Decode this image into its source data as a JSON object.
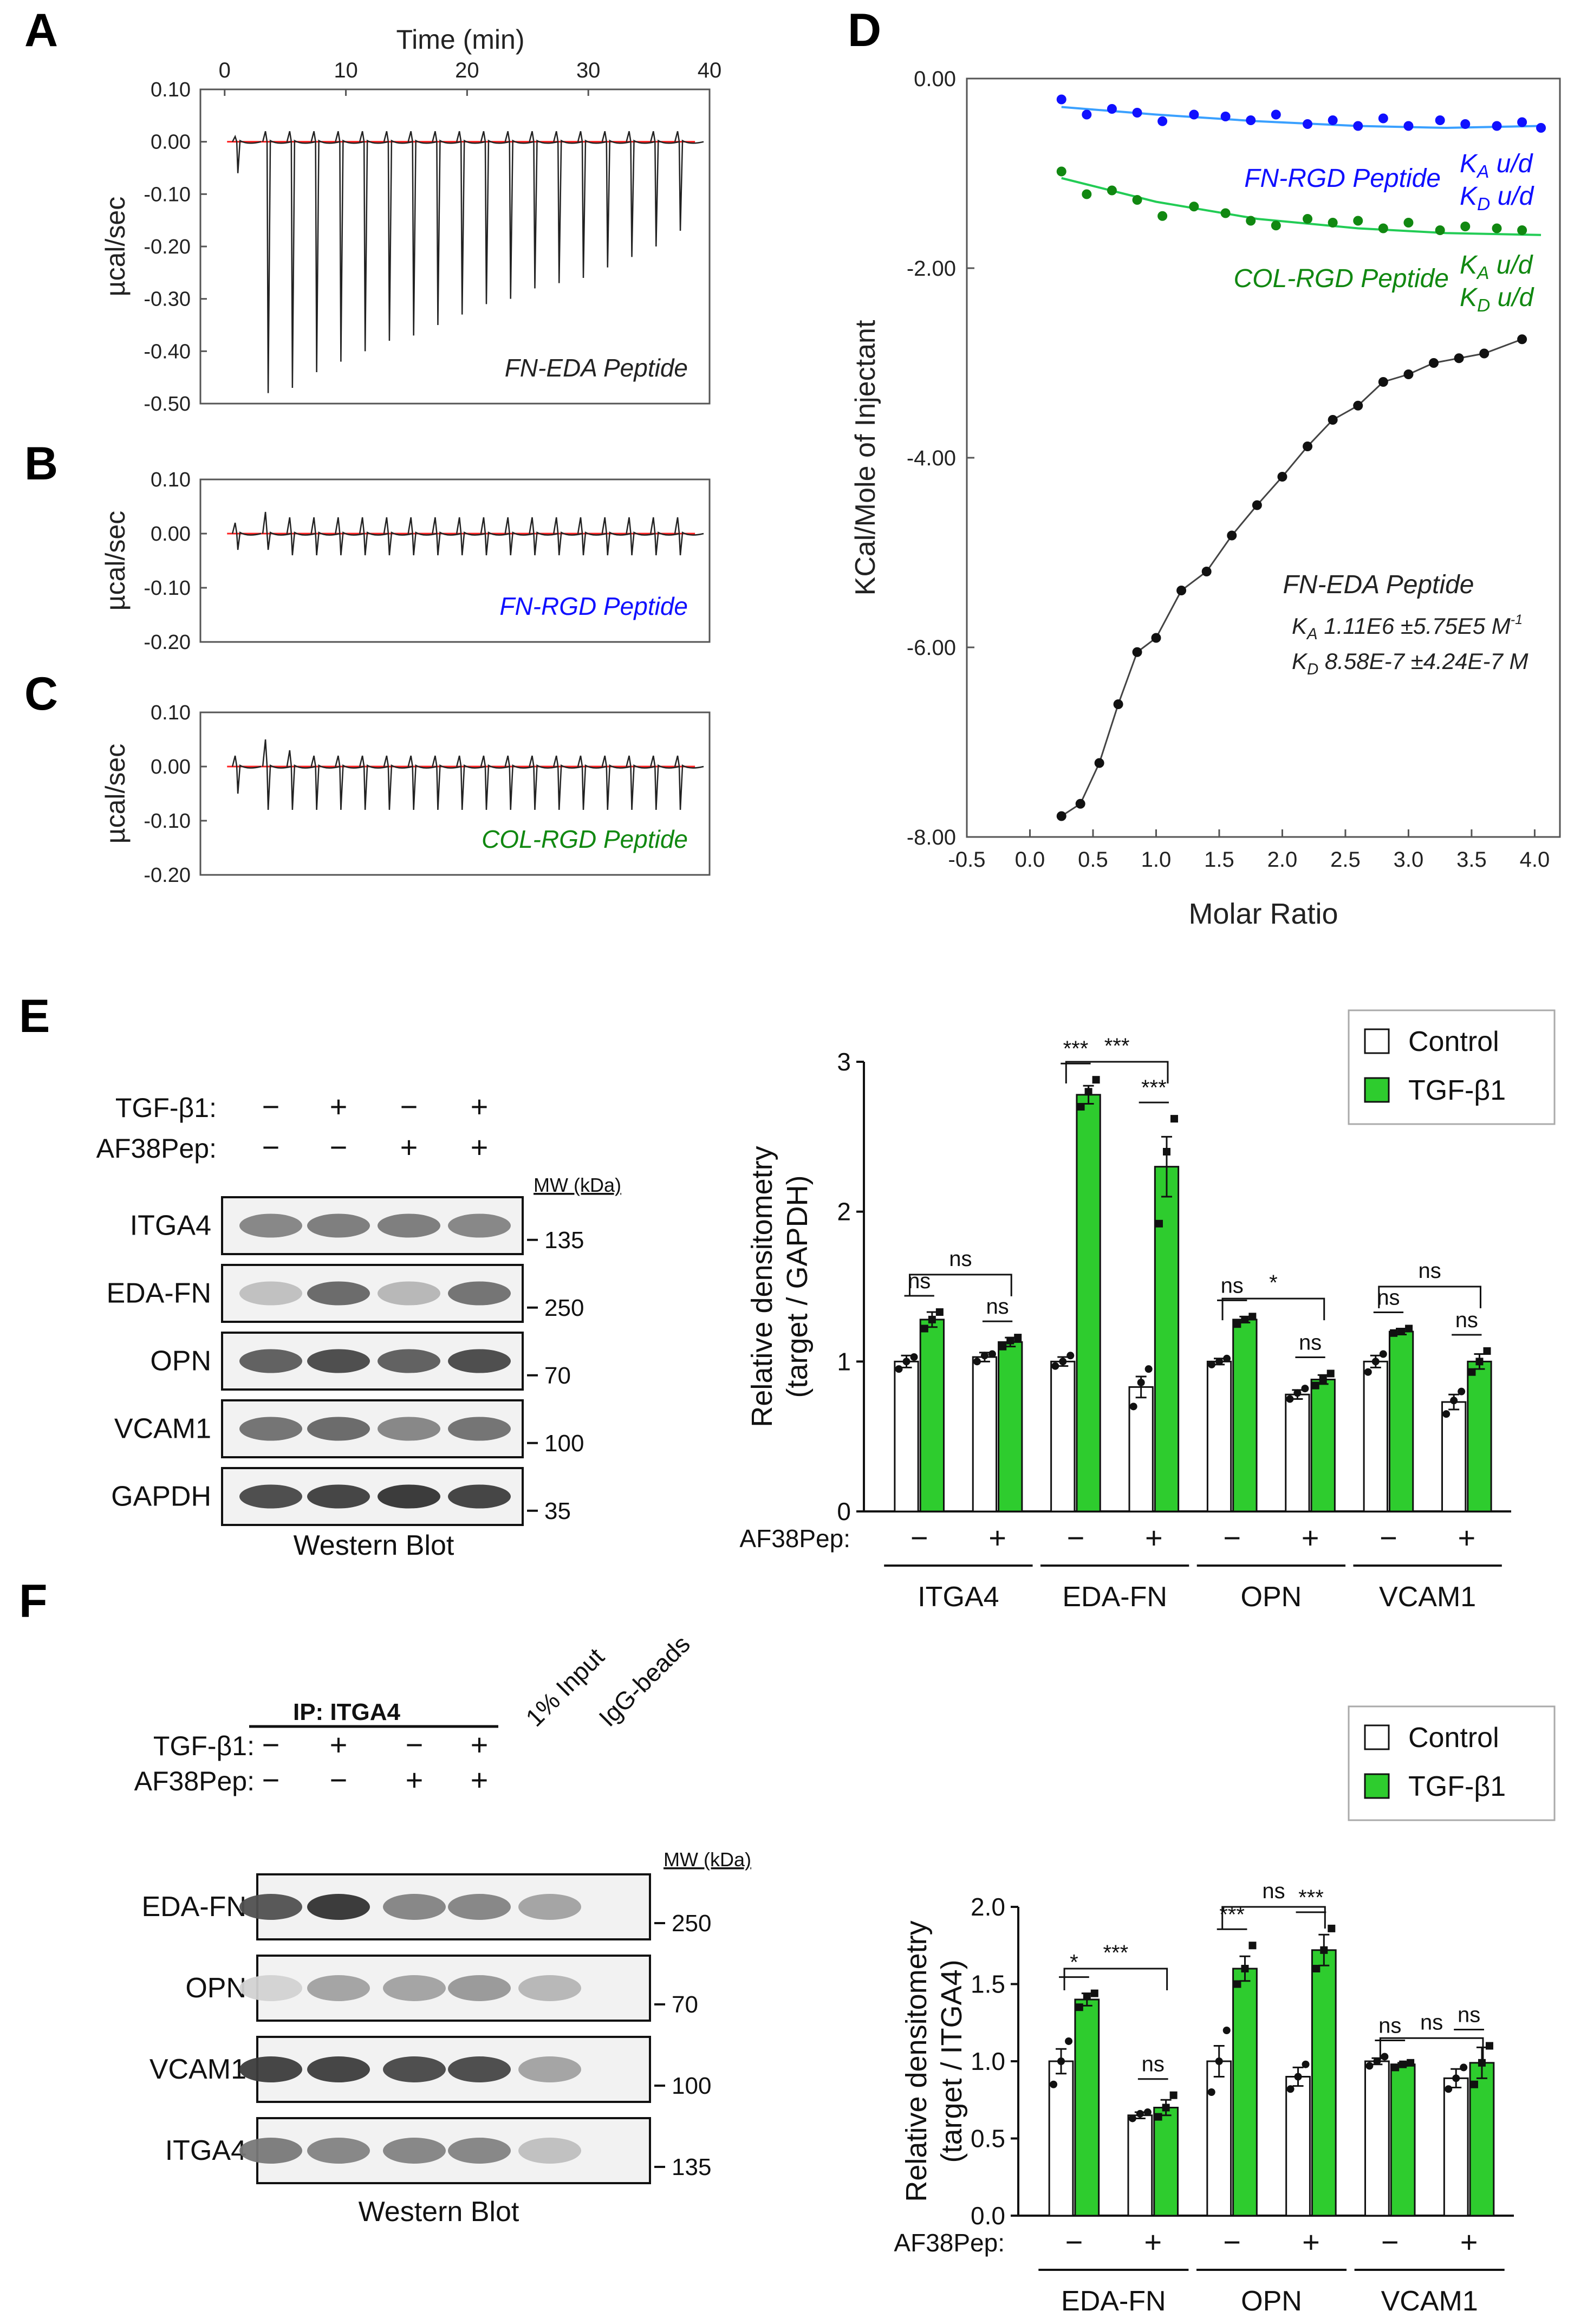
{
  "panel_labels": {
    "A": "A",
    "B": "B",
    "C": "C",
    "D": "D",
    "E": "E",
    "F": "F"
  },
  "colors": {
    "baseline": "#ff2020",
    "trace": "#222222",
    "blue": "#1010ff",
    "green": "#118811",
    "fit_blue": "#3aa0ff",
    "fit_green": "#22cc55",
    "bar_green": "#2ecc2e",
    "bar_edge": "#111111"
  },
  "chart_data": [
    {
      "id": "A",
      "type": "line",
      "title": "",
      "xlabel": "Time (min)",
      "ylabel": "µcal/sec",
      "xlim": [
        -2,
        40
      ],
      "ylim": [
        -0.5,
        0.1
      ],
      "xticks": [
        "0",
        "10",
        "20",
        "30",
        "40"
      ],
      "yticks": [
        "0.10",
        "0.00",
        "-0.10",
        "-0.20",
        "-0.30",
        "-0.40",
        "-0.50"
      ],
      "annotation": "FN-EDA Peptide",
      "injection_times": [
        1,
        3.5,
        5.5,
        7.5,
        9.5,
        11.5,
        13.5,
        15.5,
        17.5,
        19.5,
        21.5,
        23.5,
        25.5,
        27.5,
        29.5,
        31.5,
        33.5,
        35.5,
        37.5
      ],
      "peak_values": [
        -0.06,
        -0.48,
        -0.47,
        -0.44,
        -0.42,
        -0.4,
        -0.38,
        -0.37,
        -0.35,
        -0.33,
        -0.31,
        -0.3,
        -0.28,
        -0.27,
        -0.26,
        -0.24,
        -0.22,
        -0.2,
        -0.17
      ],
      "pos_peak": [
        0.01,
        0.02,
        0.02,
        0.02,
        0.02,
        0.02,
        0.02,
        0.02,
        0.02,
        0.02,
        0.02,
        0.02,
        0.02,
        0.02,
        0.02,
        0.02,
        0.02,
        0.02,
        0.02
      ]
    },
    {
      "id": "B",
      "type": "line",
      "title": "",
      "xlabel": "",
      "ylabel": "µcal/sec",
      "xlim": [
        -2,
        40
      ],
      "ylim": [
        -0.2,
        0.1
      ],
      "yticks": [
        "0.10",
        "0.00",
        "-0.10",
        "-0.20"
      ],
      "annotation": "FN-RGD Peptide",
      "injection_times": [
        1,
        3.5,
        5.5,
        7.5,
        9.5,
        11.5,
        13.5,
        15.5,
        17.5,
        19.5,
        21.5,
        23.5,
        25.5,
        27.5,
        29.5,
        31.5,
        33.5,
        35.5,
        37.5
      ],
      "peak_values": [
        -0.03,
        -0.03,
        -0.04,
        -0.04,
        -0.04,
        -0.04,
        -0.04,
        -0.04,
        -0.04,
        -0.04,
        -0.04,
        -0.04,
        -0.04,
        -0.04,
        -0.04,
        -0.04,
        -0.04,
        -0.04,
        -0.04
      ],
      "pos_peak": [
        0.02,
        0.04,
        0.03,
        0.03,
        0.03,
        0.03,
        0.03,
        0.03,
        0.03,
        0.03,
        0.03,
        0.03,
        0.03,
        0.03,
        0.03,
        0.03,
        0.03,
        0.03,
        0.03
      ]
    },
    {
      "id": "C",
      "type": "line",
      "title": "",
      "xlabel": "",
      "ylabel": "µcal/sec",
      "xlim": [
        -2,
        40
      ],
      "ylim": [
        -0.2,
        0.1
      ],
      "yticks": [
        "0.10",
        "0.00",
        "-0.10",
        "-0.20"
      ],
      "annotation": "COL-RGD Peptide",
      "injection_times": [
        1,
        3.5,
        5.5,
        7.5,
        9.5,
        11.5,
        13.5,
        15.5,
        17.5,
        19.5,
        21.5,
        23.5,
        25.5,
        27.5,
        29.5,
        31.5,
        33.5,
        35.5,
        37.5
      ],
      "peak_values": [
        -0.05,
        -0.08,
        -0.08,
        -0.08,
        -0.08,
        -0.08,
        -0.08,
        -0.08,
        -0.08,
        -0.08,
        -0.08,
        -0.08,
        -0.08,
        -0.08,
        -0.08,
        -0.08,
        -0.08,
        -0.08,
        -0.08
      ],
      "pos_peak": [
        0.02,
        0.05,
        0.03,
        0.02,
        0.02,
        0.02,
        0.02,
        0.02,
        0.02,
        0.02,
        0.02,
        0.02,
        0.02,
        0.02,
        0.02,
        0.02,
        0.02,
        0.02,
        0.02
      ]
    },
    {
      "id": "D",
      "type": "scatter",
      "title": "",
      "xlabel": "Molar Ratio",
      "ylabel": "KCal/Mole of Injectant",
      "xlim": [
        -0.5,
        4.2
      ],
      "ylim": [
        -8.0,
        0.0
      ],
      "xticks": [
        "-0.5",
        "0.0",
        "0.5",
        "1.0",
        "1.5",
        "2.0",
        "2.5",
        "3.0",
        "3.5",
        "4.0"
      ],
      "yticks": [
        "0.00",
        "-2.00",
        "-4.00",
        "-6.00",
        "-8.00"
      ],
      "series": [
        {
          "name": "FN-RGD Peptide",
          "color": "blue",
          "x": [
            0.25,
            0.45,
            0.65,
            0.85,
            1.05,
            1.3,
            1.55,
            1.75,
            1.95,
            2.2,
            2.4,
            2.6,
            2.8,
            3.0,
            3.25,
            3.45,
            3.7,
            3.9,
            4.05
          ],
          "y": [
            -0.22,
            -0.38,
            -0.32,
            -0.36,
            -0.45,
            -0.38,
            -0.4,
            -0.44,
            -0.38,
            -0.48,
            -0.44,
            -0.5,
            -0.42,
            -0.5,
            -0.44,
            -0.48,
            -0.5,
            -0.46,
            -0.52
          ],
          "fit": [
            -0.3,
            -0.38,
            -0.45,
            -0.5,
            -0.52,
            -0.5
          ]
        },
        {
          "name": "COL-RGD Peptide",
          "color": "green",
          "x": [
            0.25,
            0.45,
            0.65,
            0.85,
            1.05,
            1.3,
            1.55,
            1.75,
            1.95,
            2.2,
            2.4,
            2.6,
            2.8,
            3.0,
            3.25,
            3.45,
            3.7,
            3.9
          ],
          "y": [
            -0.98,
            -1.22,
            -1.18,
            -1.28,
            -1.45,
            -1.35,
            -1.42,
            -1.5,
            -1.55,
            -1.48,
            -1.52,
            -1.5,
            -1.58,
            -1.52,
            -1.6,
            -1.56,
            -1.58,
            -1.6
          ],
          "fit": [
            -1.05,
            -1.3,
            -1.48,
            -1.58,
            -1.63,
            -1.65
          ]
        },
        {
          "name": "FN-EDA Peptide",
          "color": "black",
          "x": [
            0.25,
            0.4,
            0.55,
            0.7,
            0.85,
            1.0,
            1.2,
            1.4,
            1.6,
            1.8,
            2.0,
            2.2,
            2.4,
            2.6,
            2.8,
            3.0,
            3.2,
            3.4,
            3.6,
            3.9
          ],
          "y": [
            -7.78,
            -7.65,
            -7.22,
            -6.6,
            -6.05,
            -5.9,
            -5.4,
            -5.2,
            -4.82,
            -4.5,
            -4.2,
            -3.88,
            -3.6,
            -3.45,
            -3.2,
            -3.12,
            -3.0,
            -2.95,
            -2.9,
            -2.75
          ]
        }
      ],
      "annotations": {
        "fn_rgd_ka": "K",
        "fn_rgd_ka_sub": "A",
        "fn_rgd_ka_val": " u/d",
        "fn_rgd_kd": "K",
        "fn_rgd_kd_sub": "D",
        "fn_rgd_kd_val": " u/d",
        "col_rgd_ka": "K",
        "col_rgd_ka_sub": "A",
        "col_rgd_ka_val": " u/d",
        "col_rgd_kd": "K",
        "col_rgd_kd_sub": "D",
        "col_rgd_kd_val": " u/d",
        "fn_eda_title": "FN-EDA Peptide",
        "fn_eda_ka": "K",
        "fn_eda_ka_sub": "A",
        "fn_eda_ka_val": "1.11E6 ±5.75E5 M",
        "fn_eda_ka_sup": "-1",
        "fn_eda_kd": "K",
        "fn_eda_kd_sub": "D",
        "fn_eda_kd_val": "8.58E-7 ±4.24E-7 M"
      }
    },
    {
      "id": "E",
      "type": "bar",
      "xlabel": "",
      "ylabel": "Relative densitometry (target / GAPDH)",
      "ylim": [
        0,
        3
      ],
      "yticks": [
        "0",
        "1",
        "2",
        "3"
      ],
      "legend": [
        "Control",
        "TGF-β1"
      ],
      "groups": [
        "ITGA4",
        "EDA-FN",
        "OPN",
        "VCAM1"
      ],
      "af_label": "AF38Pep:",
      "af_signs": [
        "−",
        "+"
      ],
      "bars": [
        {
          "group": "ITGA4",
          "af": "−",
          "control": 1.0,
          "tgf": 1.28,
          "ctrl_pts": [
            0.95,
            1.0,
            1.03
          ],
          "tgf_pts": [
            1.22,
            1.28,
            1.33
          ]
        },
        {
          "group": "ITGA4",
          "af": "+",
          "control": 1.03,
          "tgf": 1.13,
          "ctrl_pts": [
            1.0,
            1.04,
            1.05
          ],
          "tgf_pts": [
            1.1,
            1.14,
            1.16
          ]
        },
        {
          "group": "EDA-FN",
          "af": "−",
          "control": 1.0,
          "tgf": 2.78,
          "ctrl_pts": [
            0.97,
            1.0,
            1.04
          ],
          "tgf_pts": [
            2.7,
            2.8,
            2.88
          ]
        },
        {
          "group": "EDA-FN",
          "af": "+",
          "control": 0.83,
          "tgf": 2.3,
          "ctrl_pts": [
            0.7,
            0.86,
            0.95
          ],
          "tgf_pts": [
            1.92,
            2.4,
            2.62
          ]
        },
        {
          "group": "OPN",
          "af": "−",
          "control": 1.0,
          "tgf": 1.28,
          "ctrl_pts": [
            0.98,
            1.0,
            1.02
          ],
          "tgf_pts": [
            1.25,
            1.28,
            1.3
          ]
        },
        {
          "group": "OPN",
          "af": "+",
          "control": 0.78,
          "tgf": 0.88,
          "ctrl_pts": [
            0.75,
            0.79,
            0.82
          ],
          "tgf_pts": [
            0.84,
            0.88,
            0.92
          ]
        },
        {
          "group": "VCAM1",
          "af": "−",
          "control": 1.0,
          "tgf": 1.2,
          "ctrl_pts": [
            0.93,
            1.0,
            1.05
          ],
          "tgf_pts": [
            1.19,
            1.2,
            1.22
          ]
        },
        {
          "group": "VCAM1",
          "af": "+",
          "control": 0.73,
          "tgf": 1.0,
          "ctrl_pts": [
            0.65,
            0.74,
            0.8
          ],
          "tgf_pts": [
            0.93,
            1.0,
            1.07
          ]
        }
      ],
      "errors": {
        "control": [
          0.04,
          0.03,
          0.03,
          0.07,
          0.02,
          0.03,
          0.04,
          0.05
        ],
        "tgf": [
          0.05,
          0.03,
          0.06,
          0.2,
          0.02,
          0.03,
          0.02,
          0.05
        ]
      },
      "sig": [
        {
          "label": "ns",
          "type": "pair",
          "bar": 0
        },
        {
          "label": "ns",
          "type": "pair",
          "bar": 1
        },
        {
          "label": "ns",
          "type": "across",
          "from": 0,
          "to": 1,
          "level": 1.58
        },
        {
          "label": "***",
          "type": "pair",
          "bar": 2
        },
        {
          "label": "***",
          "type": "pair",
          "bar": 3
        },
        {
          "label": "***",
          "type": "across",
          "from": 2,
          "to": 3,
          "level": 3.0
        },
        {
          "label": "ns",
          "type": "pair",
          "bar": 4
        },
        {
          "label": "ns",
          "type": "pair",
          "bar": 5
        },
        {
          "label": "*",
          "type": "across",
          "from": 4,
          "to": 5,
          "level": 1.42
        },
        {
          "label": "ns",
          "type": "pair",
          "bar": 6
        },
        {
          "label": "ns",
          "type": "pair",
          "bar": 7
        },
        {
          "label": "ns",
          "type": "across",
          "from": 6,
          "to": 7,
          "level": 1.5
        }
      ]
    },
    {
      "id": "F",
      "type": "bar",
      "xlabel": "",
      "ylabel": "Relative densitometry (target / ITGA4)",
      "ylim": [
        0,
        2.0
      ],
      "yticks": [
        "0.0",
        "0.5",
        "1.0",
        "1.5",
        "2.0"
      ],
      "legend": [
        "Control",
        "TGF-β1"
      ],
      "groups": [
        "EDA-FN",
        "OPN",
        "VCAM1"
      ],
      "af_label": "AF38Pep:",
      "af_signs": [
        "−",
        "+"
      ],
      "bars": [
        {
          "group": "EDA-FN",
          "af": "−",
          "control": 1.0,
          "tgf": 1.4,
          "ctrl_pts": [
            0.85,
            1.0,
            1.13
          ],
          "tgf_pts": [
            1.35,
            1.42,
            1.44
          ]
        },
        {
          "group": "EDA-FN",
          "af": "+",
          "control": 0.65,
          "tgf": 0.7,
          "ctrl_pts": [
            0.63,
            0.66,
            0.67
          ],
          "tgf_pts": [
            0.64,
            0.7,
            0.78
          ]
        },
        {
          "group": "OPN",
          "af": "−",
          "control": 1.0,
          "tgf": 1.6,
          "ctrl_pts": [
            0.8,
            1.0,
            1.2
          ],
          "tgf_pts": [
            1.5,
            1.6,
            1.75
          ]
        },
        {
          "group": "OPN",
          "af": "+",
          "control": 0.9,
          "tgf": 1.72,
          "ctrl_pts": [
            0.82,
            0.9,
            0.98
          ],
          "tgf_pts": [
            1.6,
            1.72,
            1.86
          ]
        },
        {
          "group": "VCAM1",
          "af": "−",
          "control": 1.0,
          "tgf": 0.98,
          "ctrl_pts": [
            0.97,
            1.0,
            1.03
          ],
          "tgf_pts": [
            0.96,
            0.98,
            0.99
          ]
        },
        {
          "group": "VCAM1",
          "af": "+",
          "control": 0.89,
          "tgf": 0.99,
          "ctrl_pts": [
            0.82,
            0.89,
            0.96
          ],
          "tgf_pts": [
            0.85,
            0.99,
            1.1
          ]
        }
      ],
      "errors": {
        "control": [
          0.08,
          0.02,
          0.1,
          0.06,
          0.02,
          0.06
        ],
        "tgf": [
          0.04,
          0.05,
          0.08,
          0.1,
          0.01,
          0.1
        ]
      },
      "sig": [
        {
          "label": "*",
          "type": "pair",
          "bar": 0
        },
        {
          "label": "ns",
          "type": "pair",
          "bar": 1
        },
        {
          "label": "***",
          "type": "across",
          "from": 0,
          "to": 1,
          "level": 1.6
        },
        {
          "label": "***",
          "type": "pair",
          "bar": 2
        },
        {
          "label": "***",
          "type": "pair",
          "bar": 3
        },
        {
          "label": "ns",
          "type": "across",
          "from": 2,
          "to": 3,
          "level": 2.0
        },
        {
          "label": "ns",
          "type": "pair",
          "bar": 4
        },
        {
          "label": "ns",
          "type": "pair",
          "bar": 5
        },
        {
          "label": "ns",
          "type": "across",
          "from": 4,
          "to": 5,
          "level": 1.15
        }
      ]
    }
  ],
  "blotE": {
    "treat_rows": [
      {
        "label": "TGF-β1:",
        "signs": [
          "−",
          "+",
          "−",
          "+"
        ]
      },
      {
        "label": "AF38Pep:",
        "signs": [
          "−",
          "−",
          "+",
          "+"
        ]
      }
    ],
    "mw_header": "MW (kDa)",
    "bands": [
      {
        "label": "ITGA4",
        "mw": "135",
        "intensity": [
          0.5,
          0.55,
          0.55,
          0.5
        ]
      },
      {
        "label": "EDA-FN",
        "mw": "250",
        "intensity": [
          0.2,
          0.65,
          0.25,
          0.6
        ]
      },
      {
        "label": "OPN",
        "mw": "70",
        "intensity": [
          0.7,
          0.8,
          0.7,
          0.8
        ]
      },
      {
        "label": "VCAM1",
        "mw": "100",
        "intensity": [
          0.6,
          0.65,
          0.5,
          0.6
        ]
      },
      {
        "label": "GAPDH",
        "mw": "35",
        "intensity": [
          0.8,
          0.85,
          0.9,
          0.85
        ]
      }
    ],
    "caption": "Western Blot"
  },
  "blotF": {
    "ip_label": "IP: ITGA4",
    "treat_rows": [
      {
        "label": "TGF-β1:",
        "signs": [
          "−",
          "+",
          "−",
          "+"
        ]
      },
      {
        "label": "AF38Pep:",
        "signs": [
          "−",
          "−",
          "+",
          "+"
        ]
      }
    ],
    "extra_lanes": [
      "1% Input",
      "IgG-beads"
    ],
    "mw_header": "MW (kDa)",
    "bands": [
      {
        "label": "EDA-FN",
        "mw": "250",
        "intensity": [
          0.75,
          0.9,
          0.5,
          0.5,
          0.35,
          0.0
        ]
      },
      {
        "label": "OPN",
        "mw": "70",
        "intensity": [
          0.1,
          0.35,
          0.35,
          0.4,
          0.25,
          0.0
        ]
      },
      {
        "label": "VCAM1",
        "mw": "100",
        "intensity": [
          0.85,
          0.85,
          0.8,
          0.8,
          0.35,
          0.0
        ]
      },
      {
        "label": "ITGA4",
        "mw": "135",
        "intensity": [
          0.55,
          0.5,
          0.5,
          0.5,
          0.2,
          0.0
        ]
      }
    ],
    "caption": "Western Blot"
  }
}
